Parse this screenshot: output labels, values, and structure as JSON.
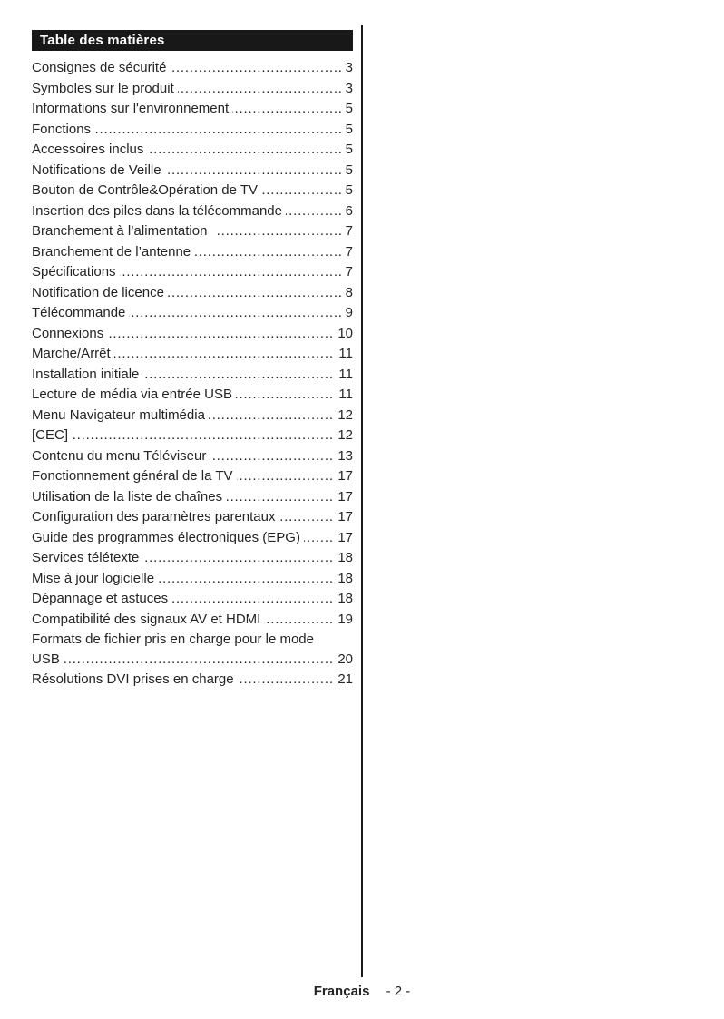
{
  "toc": {
    "title": "Table des matières",
    "entries": [
      {
        "label": "Consignes de sécurité",
        "page": "3"
      },
      {
        "label": "Symboles sur le produit",
        "page": "3"
      },
      {
        "label": "Informations sur l'environnement",
        "page": "5"
      },
      {
        "label": "Fonctions",
        "page": "5"
      },
      {
        "label": "Accessoires inclus",
        "page": "5"
      },
      {
        "label": "Notifications de Veille",
        "page": "5"
      },
      {
        "label": "Bouton de Contrôle&Opération de TV",
        "page": "5"
      },
      {
        "label": "Insertion des piles dans la télécommande",
        "page": "6"
      },
      {
        "label": "Branchement à l’alimentation ",
        "page": "7"
      },
      {
        "label": "Branchement de l’antenne",
        "page": "7"
      },
      {
        "label": "Spécifications",
        "page": "7"
      },
      {
        "label": "Notification de licence",
        "page": "8"
      },
      {
        "label": "Télécommande",
        "page": "9"
      },
      {
        "label": "Connexions",
        "page": "10"
      },
      {
        "label": "Marche/Arrêt",
        "page": "11"
      },
      {
        "label": "Installation initiale",
        "page": "11"
      },
      {
        "label": "Lecture de média via entrée USB",
        "page": "11"
      },
      {
        "label": "Menu Navigateur multimédia",
        "page": "12"
      },
      {
        "label": "[CEC]",
        "page": "12"
      },
      {
        "label": "Contenu du menu Téléviseur",
        "page": "13"
      },
      {
        "label": "Fonctionnement général de la TV",
        "page": "17"
      },
      {
        "label": "Utilisation de la liste de chaînes",
        "page": "17"
      },
      {
        "label": "Configuration des paramètres parentaux",
        "page": "17"
      },
      {
        "label": "Guide des programmes électroniques (EPG)",
        "page": "17"
      },
      {
        "label": "Services télétexte",
        "page": "18"
      },
      {
        "label": "Mise à jour logicielle",
        "page": "18"
      },
      {
        "label": "Dépannage et astuces",
        "page": "18"
      },
      {
        "label": "Compatibilité des signaux AV et HDMI",
        "page": "19"
      },
      {
        "label": "Formats de fichier pris en charge pour le mode\nUSB",
        "page": "20"
      },
      {
        "label": "Résolutions DVI prises en charge",
        "page": "21"
      }
    ]
  },
  "footer": {
    "language": "Français",
    "page_number": "- 2 -"
  },
  "colors": {
    "header_bg": "#181818",
    "header_text": "#ffffff",
    "text_color": "#242424",
    "divider": "#1a1a1a"
  }
}
